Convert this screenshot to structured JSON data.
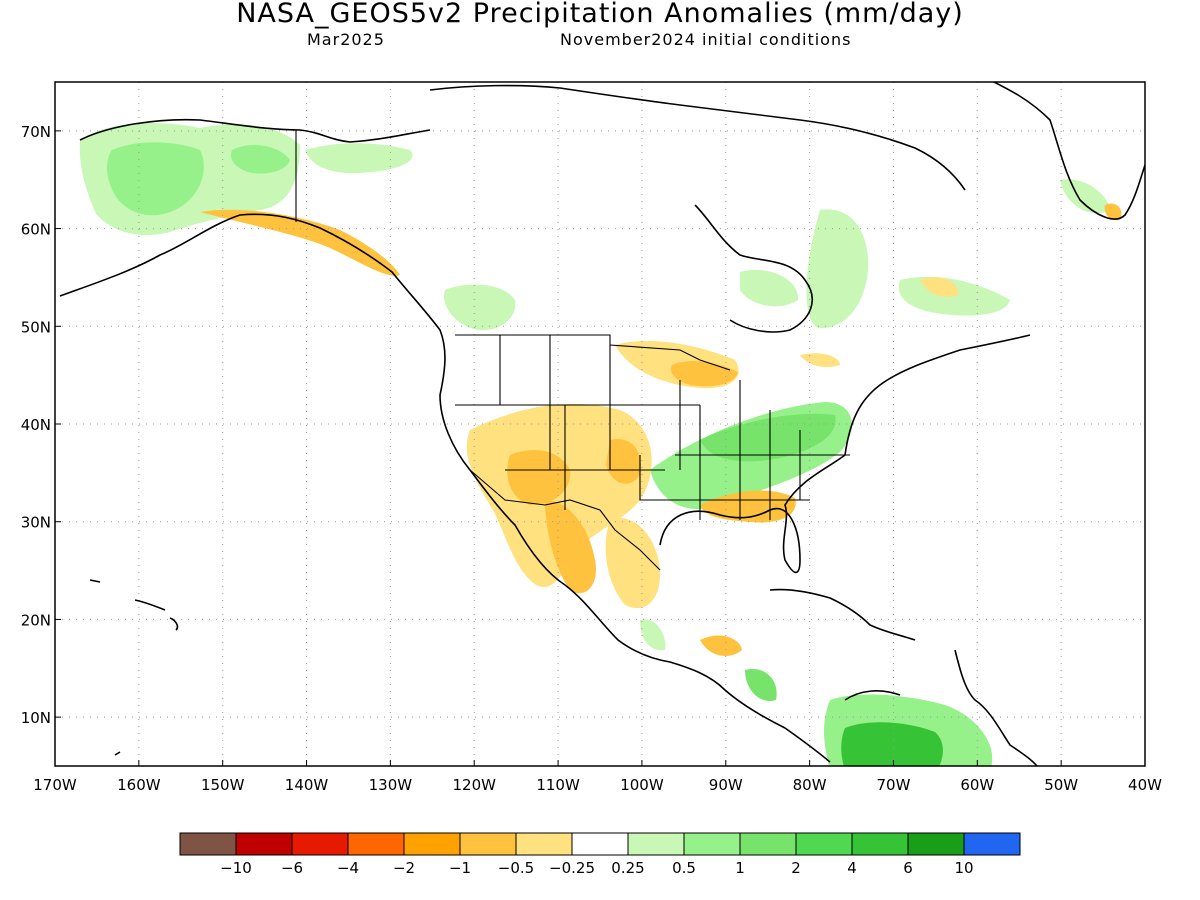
{
  "header": {
    "title": "NASA_GEOS5v2 Precipitation Anomalies (mm/day)",
    "valid_month": "Mar2025",
    "init_conditions": "November2024 initial conditions"
  },
  "map": {
    "lon_range": [
      -170,
      -40
    ],
    "lat_range": [
      5,
      75
    ],
    "gridlines": "dotted",
    "lon_ticks": [
      "170W",
      "160W",
      "150W",
      "140W",
      "130W",
      "120W",
      "110W",
      "100W",
      "90W",
      "80W",
      "70W",
      "60W",
      "50W",
      "40W"
    ],
    "lat_ticks": [
      "10N",
      "20N",
      "30N",
      "40N",
      "50N",
      "60N",
      "70N"
    ]
  },
  "colorbar": {
    "colors": [
      "#7f5444",
      "#c00000",
      "#e61a00",
      "#ff6600",
      "#ffa200",
      "#ffc23f",
      "#ffe17f",
      "#ffffff",
      "#c8f7b6",
      "#96f18b",
      "#78e36b",
      "#50d850",
      "#36c436",
      "#189e18",
      "#2066f0"
    ],
    "tick_labels": [
      "−10",
      "−6",
      "−4",
      "−2",
      "−1",
      "−0.5",
      "−0.25",
      "0.25",
      "0.5",
      "1",
      "2",
      "4",
      "6",
      "10"
    ]
  },
  "anomaly_regions": [
    {
      "region": "Alaska",
      "category": "0.5",
      "color": "#c8f7b6"
    },
    {
      "region": "Alaska interior",
      "category": "1",
      "color": "#96f18b"
    },
    {
      "region": "Southeast Alaska coast",
      "category": "-0.5",
      "color": "#ffc23f"
    },
    {
      "region": "Southwest US",
      "category": "-0.5",
      "color": "#ffc23f"
    },
    {
      "region": "Four Corners",
      "category": "-0.25",
      "color": "#ffe17f"
    },
    {
      "region": "Northern Mexico",
      "category": "-0.5",
      "color": "#ffc23f"
    },
    {
      "region": "Upper Midwest",
      "category": "-0.5",
      "color": "#ffc23f"
    },
    {
      "region": "Ohio / Tennessee Valley",
      "category": "1",
      "color": "#96f18b"
    },
    {
      "region": "Southeast US",
      "category": "-0.5",
      "color": "#ffc23f"
    },
    {
      "region": "Northwestern South America",
      "category": "4",
      "color": "#36c436"
    },
    {
      "region": "Quebec / Labrador",
      "category": "0.5",
      "color": "#c8f7b6"
    },
    {
      "region": "Southern Greenland",
      "category": "0.5",
      "color": "#c8f7b6"
    }
  ]
}
